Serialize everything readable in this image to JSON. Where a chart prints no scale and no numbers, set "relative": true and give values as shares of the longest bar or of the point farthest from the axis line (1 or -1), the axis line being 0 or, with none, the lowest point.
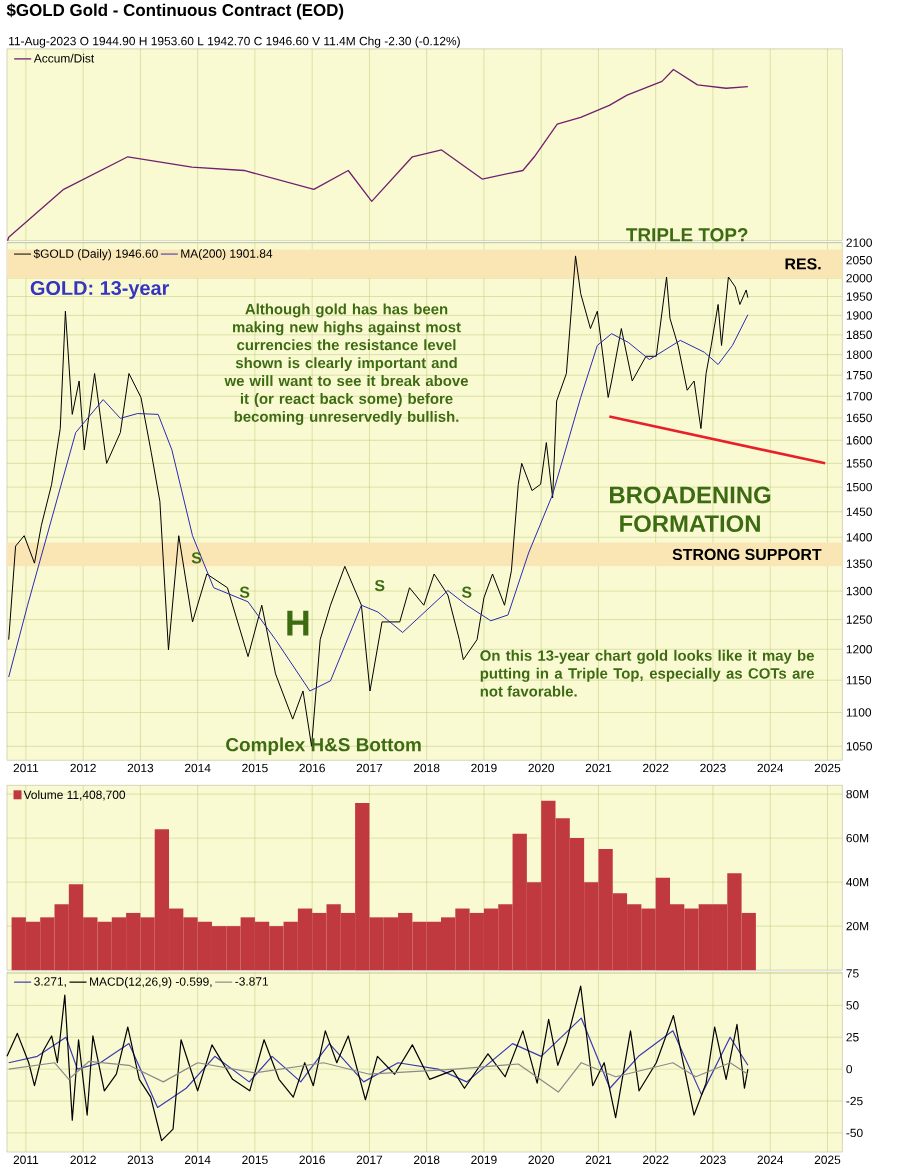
{
  "chart_data": [
    {
      "type": "line",
      "title": "$GOLD Gold - Continuous Contract (EOD)",
      "subtitle": "11-Aug-2023   O 1944.90  H 1953.60  L 1942.70  C 1946.60  V 11.4M  Chg -2.30 (-0.12%)",
      "relative": true,
      "xlim": [
        2010.67,
        2025.26
      ],
      "xticks": [
        2011,
        2012,
        2013,
        2014,
        2015,
        2016,
        2017,
        2018,
        2019,
        2020,
        2021,
        2022,
        2023,
        2024,
        2025
      ],
      "tick_labels": false,
      "grid": "x",
      "legend": "top left",
      "series": [
        {
          "name": "Accum/Dist",
          "color": "#70206e",
          "x": [
            2010.68,
            2010.7,
            2011.66,
            2012.78,
            2013.9,
            2014.81,
            2016.03,
            2016.63,
            2017.04,
            2017.75,
            2018.26,
            2018.97,
            2019.68,
            2019.88,
            2020.28,
            2020.69,
            2021.19,
            2021.5,
            2022.11,
            2022.31,
            2022.73,
            2023.23,
            2023.61
          ],
          "values": [
            0,
            0.02,
            0.3,
            0.49,
            0.43,
            0.41,
            0.3,
            0.41,
            0.23,
            0.49,
            0.53,
            0.36,
            0.41,
            0.49,
            0.68,
            0.72,
            0.79,
            0.85,
            0.93,
            1.0,
            0.91,
            0.89,
            0.9
          ]
        }
      ]
    },
    {
      "type": "line",
      "xlim": [
        2010.67,
        2025.26
      ],
      "xticks": [
        2011,
        2012,
        2013,
        2014,
        2015,
        2016,
        2017,
        2018,
        2019,
        2020,
        2021,
        2022,
        2023,
        2024,
        2025
      ],
      "ylim": [
        1030,
        2100
      ],
      "yticks": [
        1050,
        1100,
        1150,
        1200,
        1250,
        1300,
        1350,
        1400,
        1450,
        1500,
        1550,
        1600,
        1650,
        1700,
        1750,
        1800,
        1850,
        1900,
        1950,
        2000,
        2050,
        2100
      ],
      "log": "y",
      "grid": true,
      "legend": "top left",
      "bands": [
        {
          "axis": "y",
          "from": 2000,
          "to": 2080,
          "label": "RES.",
          "color": "#fae6b4"
        },
        {
          "axis": "y",
          "from": 1345,
          "to": 1390,
          "label": "STRONG SUPPORT",
          "color": "#fae6b4"
        }
      ],
      "series": [
        {
          "name": "$GOLD (Daily) 1946.60",
          "color": "#000000",
          "x": [
            2010.7,
            2010.82,
            2010.97,
            2011.15,
            2011.27,
            2011.45,
            2011.6,
            2011.69,
            2011.81,
            2011.93,
            2012.02,
            2012.2,
            2012.41,
            2012.65,
            2012.8,
            2013.01,
            2013.19,
            2013.34,
            2013.49,
            2013.67,
            2013.91,
            2014.16,
            2014.52,
            2014.88,
            2015.12,
            2015.36,
            2015.66,
            2015.84,
            2015.99,
            2016.14,
            2016.32,
            2016.57,
            2016.86,
            2017.01,
            2017.22,
            2017.53,
            2017.7,
            2017.95,
            2018.13,
            2018.37,
            2018.57,
            2018.64,
            2018.88,
            2019.0,
            2019.15,
            2019.36,
            2019.48,
            2019.6,
            2019.66,
            2019.84,
            2019.99,
            2020.09,
            2020.2,
            2020.27,
            2020.44,
            2020.6,
            2020.69,
            2020.86,
            2020.98,
            2021.17,
            2021.23,
            2021.4,
            2021.59,
            2021.83,
            2022.01,
            2022.19,
            2022.25,
            2022.39,
            2022.55,
            2022.67,
            2022.79,
            2022.88,
            2022.97,
            2023.09,
            2023.15,
            2023.27,
            2023.39,
            2023.47,
            2023.58,
            2023.61
          ],
          "values": [
            1216,
            1383,
            1403,
            1351,
            1423,
            1506,
            1626,
            1911,
            1658,
            1736,
            1579,
            1754,
            1550,
            1617,
            1754,
            1697,
            1573,
            1471,
            1199,
            1403,
            1246,
            1331,
            1306,
            1188,
            1275,
            1160,
            1090,
            1133,
            1050,
            1216,
            1275,
            1345,
            1275,
            1133,
            1246,
            1246,
            1306,
            1275,
            1331,
            1293,
            1216,
            1183,
            1216,
            1288,
            1331,
            1275,
            1337,
            1506,
            1550,
            1493,
            1506,
            1595,
            1478,
            1689,
            1754,
            2062,
            1958,
            1866,
            1911,
            1697,
            1736,
            1866,
            1736,
            1796,
            1796,
            2003,
            1892,
            1823,
            1714,
            1736,
            1626,
            1754,
            1823,
            1929,
            1823,
            2003,
            1976,
            1929,
            1968,
            1947
          ]
        },
        {
          "name": "MA(200) 1901.84",
          "color": "#2b2bb0",
          "x": [
            2010.7,
            2011.03,
            2011.45,
            2011.87,
            2012.35,
            2012.65,
            2012.95,
            2013.31,
            2013.55,
            2013.91,
            2014.28,
            2014.88,
            2015.36,
            2015.96,
            2016.32,
            2016.86,
            2017.15,
            2017.58,
            2018.37,
            2018.7,
            2019.12,
            2019.42,
            2019.78,
            2020.2,
            2020.69,
            2020.98,
            2021.23,
            2021.52,
            2021.89,
            2022.43,
            2022.85,
            2023.09,
            2023.34,
            2023.61
          ],
          "values": [
            1155,
            1275,
            1436,
            1617,
            1692,
            1649,
            1660,
            1658,
            1579,
            1403,
            1306,
            1281,
            1216,
            1133,
            1149,
            1275,
            1263,
            1228,
            1301,
            1275,
            1248,
            1258,
            1370,
            1485,
            1697,
            1823,
            1853,
            1831,
            1788,
            1836,
            1806,
            1776,
            1823,
            1902
          ]
        },
        {
          "color": "#e8202a",
          "x": [
            2021.19,
            2024.96
          ],
          "values": [
            1653,
            1550
          ]
        }
      ],
      "annotations": [
        "GOLD: 13-year",
        "Although gold has has been making new highs against most currencies the resistance level shown is clearly important and we will want to see it break above it (or react back some) before becoming unreservedly bullish.",
        "TRIPLE TOP?",
        "BROADENING FORMATION",
        "S",
        "S",
        "S",
        "S",
        "H",
        "Complex H&S Bottom",
        "On this 13-year chart gold looks like it may be putting in a Triple Top, especially as COTs are not favorable."
      ]
    },
    {
      "type": "bar",
      "xlim": [
        2010.67,
        2025.26
      ],
      "xticks": [
        2011,
        2012,
        2013,
        2014,
        2015,
        2016,
        2017,
        2018,
        2019,
        2020,
        2021,
        2022,
        2023,
        2024,
        2025
      ],
      "ylim": [
        0,
        84
      ],
      "yticks": [
        {
          "value": 20,
          "label": "20M"
        },
        {
          "value": 40,
          "label": "40M"
        },
        {
          "value": 60,
          "label": "60M"
        },
        {
          "value": 80,
          "label": "80M"
        }
      ],
      "tick_labels": "y",
      "grid": true,
      "legend": "top left",
      "x": [
        2010.875,
        2011.125,
        2011.375,
        2011.625,
        2011.875,
        2012.125,
        2012.375,
        2012.625,
        2012.875,
        2013.125,
        2013.375,
        2013.625,
        2013.875,
        2014.125,
        2014.375,
        2014.625,
        2014.875,
        2015.125,
        2015.375,
        2015.625,
        2015.875,
        2016.125,
        2016.375,
        2016.625,
        2016.875,
        2017.125,
        2017.375,
        2017.625,
        2017.875,
        2018.125,
        2018.375,
        2018.625,
        2018.875,
        2019.125,
        2019.375,
        2019.625,
        2019.875,
        2020.125,
        2020.375,
        2020.625,
        2020.875,
        2021.125,
        2021.375,
        2021.625,
        2021.875,
        2022.125,
        2022.375,
        2022.625,
        2022.875,
        2023.125,
        2023.375,
        2023.625
      ],
      "series": [
        {
          "name": "Volume 11,408,700",
          "color": "#c0393f",
          "values": [
            24,
            22,
            24,
            30,
            39,
            24,
            22,
            24,
            26,
            24,
            64,
            28,
            24,
            22,
            20,
            20,
            24,
            22,
            20,
            22,
            28,
            26,
            30,
            26,
            76,
            24,
            24,
            26,
            22,
            22,
            24,
            28,
            26,
            28,
            30,
            62,
            40,
            77,
            69,
            60,
            40,
            55,
            35,
            30,
            28,
            42,
            30,
            28,
            30,
            30,
            44,
            26
          ]
        }
      ]
    },
    {
      "type": "line",
      "xlim": [
        2010.67,
        2025.26
      ],
      "xticks": [
        2011,
        2012,
        2013,
        2014,
        2015,
        2016,
        2017,
        2018,
        2019,
        2020,
        2021,
        2022,
        2023,
        2024,
        2025
      ],
      "ylim": [
        -65,
        76
      ],
      "yticks": [
        -50,
        -25,
        0,
        25,
        50,
        75
      ],
      "grid": true,
      "legend": "top left",
      "series": [
        {
          "name": "3.271,",
          "color": "#3b3bb0",
          "x": [
            2010.7,
            2011.2,
            2011.7,
            2011.9,
            2012.3,
            2012.8,
            2013.3,
            2013.8,
            2014.3,
            2014.9,
            2015.3,
            2015.8,
            2016.3,
            2016.9,
            2017.5,
            2018.2,
            2018.7,
            2019.5,
            2020.0,
            2020.7,
            2021.2,
            2021.7,
            2022.3,
            2022.8,
            2023.3,
            2023.61
          ],
          "values": [
            5,
            10,
            25,
            0,
            5,
            20,
            -30,
            -15,
            10,
            -10,
            10,
            -10,
            20,
            -10,
            5,
            0,
            -10,
            20,
            10,
            40,
            -15,
            10,
            30,
            -20,
            25,
            3
          ]
        },
        {
          "name": "MACD(12,26,9) -0.599,",
          "color": "#000000",
          "x": [
            2010.67,
            2010.85,
            2011.05,
            2011.15,
            2011.3,
            2011.45,
            2011.55,
            2011.68,
            2011.81,
            2011.92,
            2012.07,
            2012.17,
            2012.37,
            2012.58,
            2012.78,
            2012.98,
            2013.18,
            2013.37,
            2013.57,
            2013.71,
            2014.0,
            2014.25,
            2014.61,
            2014.91,
            2015.16,
            2015.42,
            2015.67,
            2015.87,
            2016.02,
            2016.23,
            2016.43,
            2016.63,
            2016.93,
            2017.14,
            2017.44,
            2017.75,
            2018.05,
            2018.46,
            2018.66,
            2019.07,
            2019.37,
            2019.68,
            2019.93,
            2020.13,
            2020.29,
            2020.44,
            2020.69,
            2020.9,
            2021.1,
            2021.3,
            2021.56,
            2021.71,
            2022.01,
            2022.31,
            2022.67,
            2022.88,
            2023.03,
            2023.23,
            2023.42,
            2023.55,
            2023.61
          ],
          "values": [
            10,
            28,
            5,
            -13,
            14,
            26,
            5,
            58,
            -40,
            23,
            -36,
            26,
            -17,
            -4,
            33,
            -8,
            -22,
            -56,
            -47,
            23,
            -17,
            19,
            -8,
            -17,
            23,
            -8,
            -22,
            5,
            -13,
            30,
            5,
            26,
            -24,
            10,
            -4,
            19,
            -8,
            -1,
            -15,
            12,
            -6,
            30,
            -11,
            39,
            3,
            21,
            65,
            -13,
            5,
            -38,
            30,
            -17,
            5,
            42,
            -36,
            -11,
            33,
            -8,
            35,
            -15,
            0
          ]
        },
        {
          "name": "-3.871",
          "color": "#8a8a8a",
          "x": [
            2010.7,
            2011.5,
            2011.75,
            2012.1,
            2012.8,
            2013.4,
            2014.0,
            2015.0,
            2016.2,
            2017.0,
            2018.5,
            2019.6,
            2020.3,
            2020.7,
            2021.3,
            2022.3,
            2022.7,
            2023.3,
            2023.61
          ],
          "values": [
            0,
            5,
            -8,
            6,
            3,
            -10,
            5,
            -3,
            5,
            -4,
            0,
            4,
            -18,
            5,
            -6,
            5,
            -6,
            5,
            -4
          ]
        }
      ]
    }
  ]
}
